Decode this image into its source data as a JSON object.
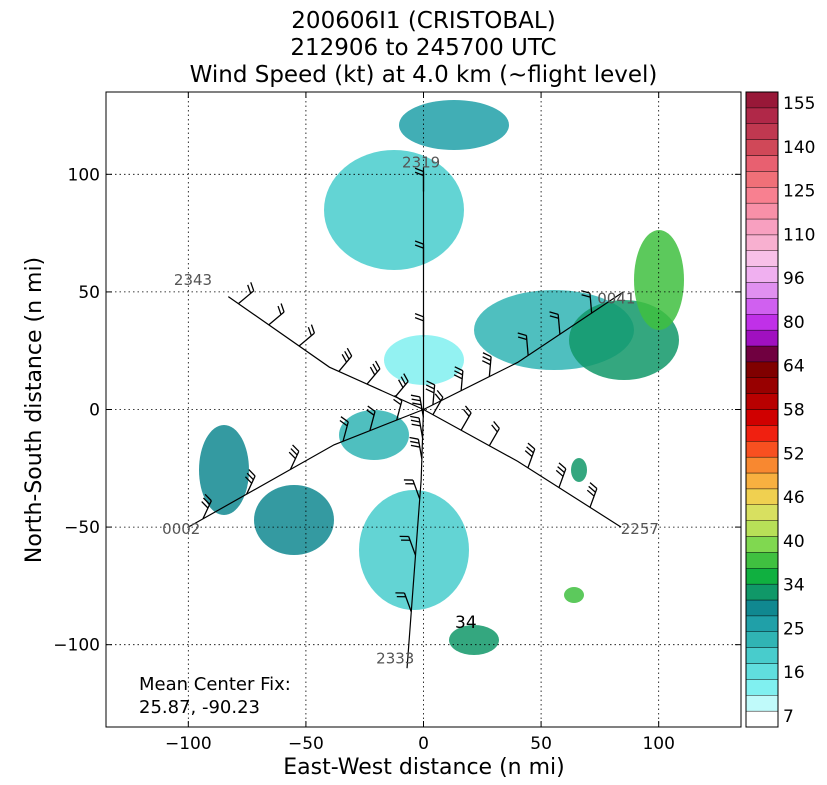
{
  "chart_data": {
    "type": "heatmap",
    "title_lines": [
      "200606I1 (CRISTOBAL)",
      "212906 to 245700 UTC",
      "Wind Speed (kt) at 4.0 km (~flight level)"
    ],
    "xlabel": "East-West distance (n mi)",
    "ylabel": "North-South distance (n mi)",
    "xlim": [
      -135,
      135
    ],
    "ylim": [
      -135,
      135
    ],
    "xticks": [
      -100,
      -50,
      0,
      50,
      100
    ],
    "yticks": [
      -100,
      -50,
      0,
      50,
      100
    ],
    "xtick_labels": [
      "−100",
      "−50",
      "0",
      "50",
      "100"
    ],
    "ytick_labels": [
      "−100",
      "−50",
      "0",
      "50",
      "100"
    ],
    "grid": true,
    "annotation_lines": [
      "Mean Center Fix:",
      "25.87, -90.23"
    ],
    "colorbar": {
      "labels": [
        "7",
        "16",
        "25",
        "34",
        "40",
        "46",
        "52",
        "58",
        "64",
        "80",
        "96",
        "110",
        "125",
        "140",
        "155"
      ],
      "colors": [
        "#ffffff",
        "#c0fafa",
        "#80f0f0",
        "#60dede",
        "#48cccc",
        "#30b4b4",
        "#20a0a8",
        "#108890",
        "#109868",
        "#10b040",
        "#40c040",
        "#80d850",
        "#b8e058",
        "#d8e060",
        "#f0d050",
        "#f8b040",
        "#f88830",
        "#f85020",
        "#f02010",
        "#d00000",
        "#b80000",
        "#980000",
        "#800000",
        "#700040",
        "#a010c0",
        "#c030e8",
        "#d060f0",
        "#e090f0",
        "#f0b0f0",
        "#f8c0e8",
        "#f8b0d0",
        "#f8a0c0",
        "#f890a8",
        "#f88090",
        "#f07078",
        "#e86070",
        "#d04858",
        "#c03850",
        "#b02848",
        "#981838"
      ]
    },
    "leg_labels": [
      {
        "text": "2343",
        "x": -98,
        "y": 53
      },
      {
        "text": "0002",
        "x": -103,
        "y": -53
      },
      {
        "text": "2257",
        "x": 92,
        "y": -53
      },
      {
        "text": "0041",
        "x": 82,
        "y": 45
      },
      {
        "text": "2319",
        "x": -1,
        "y": 103
      },
      {
        "text": "2333",
        "x": -12,
        "y": -108
      },
      {
        "text": "34",
        "x": 18,
        "y": -93
      }
    ],
    "flight_track": [
      [
        [
          -83,
          48
        ],
        [
          -40,
          18
        ],
        [
          0,
          0
        ],
        [
          40,
          -22
        ],
        [
          84,
          -50
        ]
      ],
      [
        [
          -100,
          -50
        ],
        [
          -38,
          -15
        ],
        [
          0,
          0
        ],
        [
          40,
          20
        ],
        [
          85,
          50
        ]
      ],
      [
        [
          0,
          103
        ],
        [
          0,
          0
        ],
        [
          -1,
          -30
        ],
        [
          -7,
          -110
        ]
      ]
    ]
  }
}
